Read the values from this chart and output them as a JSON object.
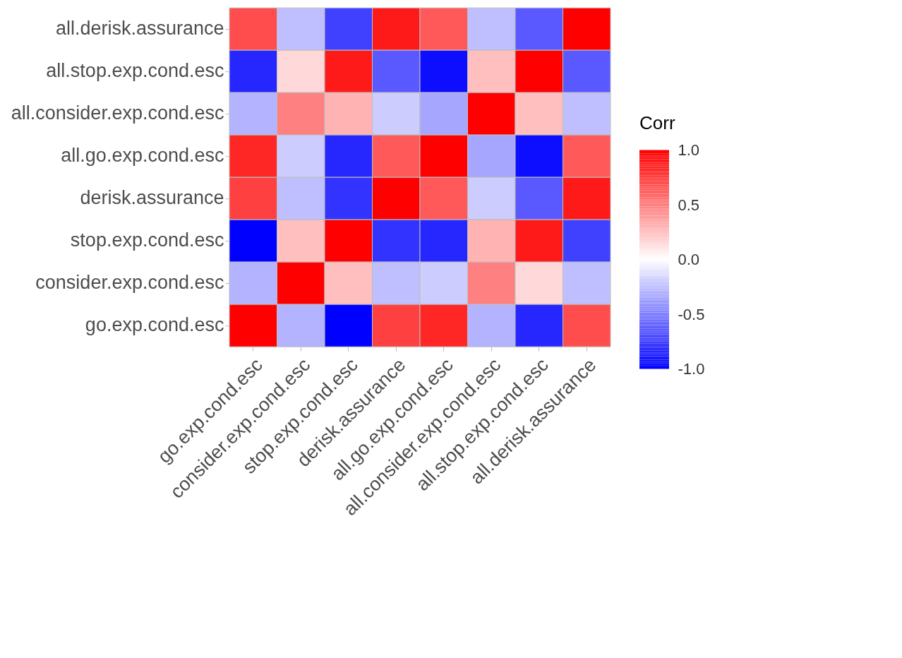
{
  "chart_data": {
    "type": "heatmap",
    "clabel": "Corr",
    "categories": [
      "go.exp.cond.esc",
      "consider.exp.cond.esc",
      "stop.exp.cond.esc",
      "derisk.assurance",
      "all.go.exp.cond.esc",
      "all.consider.exp.cond.esc",
      "all.stop.exp.cond.esc",
      "all.derisk.assurance"
    ],
    "y_categories": [
      "all.derisk.assurance",
      "all.stop.exp.cond.esc",
      "all.consider.exp.cond.esc",
      "all.go.exp.cond.esc",
      "derisk.assurance",
      "stop.exp.cond.esc",
      "consider.exp.cond.esc",
      "go.exp.cond.esc"
    ],
    "cells": [
      [
        0.7,
        -0.25,
        -0.75,
        0.9,
        0.65,
        -0.25,
        -0.65,
        1
      ],
      [
        -0.85,
        0.15,
        0.9,
        -0.65,
        -0.95,
        0.25,
        1,
        -0.65
      ],
      [
        -0.3,
        0.5,
        0.3,
        -0.2,
        -0.35,
        1,
        0.25,
        -0.25
      ],
      [
        0.85,
        -0.2,
        -0.85,
        0.65,
        1,
        -0.35,
        -0.95,
        0.65
      ],
      [
        0.75,
        -0.25,
        -0.8,
        1,
        0.65,
        -0.2,
        -0.65,
        0.9
      ],
      [
        -1,
        0.25,
        1,
        -0.8,
        -0.85,
        0.3,
        0.9,
        -0.75
      ],
      [
        -0.3,
        1,
        0.25,
        -0.25,
        -0.2,
        0.5,
        0.15,
        -0.25
      ],
      [
        1,
        -0.3,
        -1,
        0.75,
        0.85,
        -0.3,
        -0.85,
        0.7
      ]
    ],
    "clim": [
      -1,
      1
    ],
    "cticks": [
      {
        "value": -1,
        "label": "-1.0"
      },
      {
        "value": -0.5,
        "label": "-0.5"
      },
      {
        "value": 0,
        "label": "0.0"
      },
      {
        "value": 0.5,
        "label": "0.5"
      },
      {
        "value": 1,
        "label": "1.0"
      }
    ]
  }
}
